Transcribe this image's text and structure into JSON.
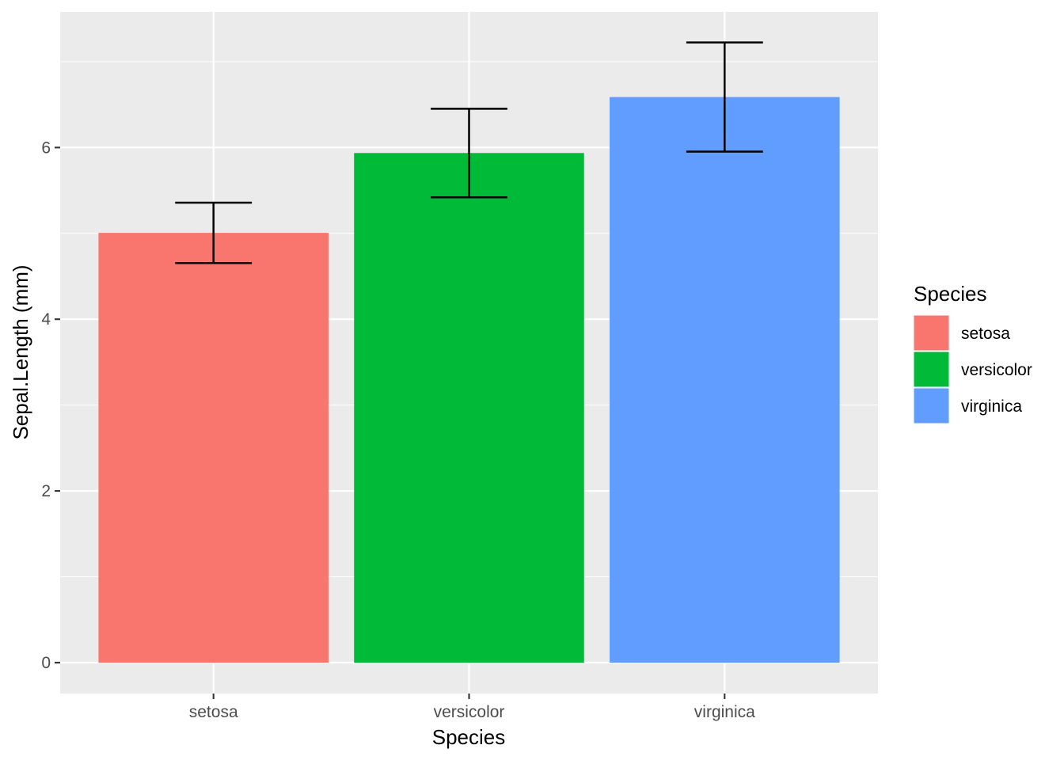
{
  "chart_data": {
    "type": "bar",
    "categories": [
      "setosa",
      "versicolor",
      "virginica"
    ],
    "values": [
      5.006,
      5.936,
      6.588
    ],
    "error_bars": {
      "lower": [
        4.654,
        5.42,
        5.952
      ],
      "upper": [
        5.358,
        6.452,
        7.224
      ]
    },
    "colors": [
      "#F8766D",
      "#00BA38",
      "#619CFF"
    ],
    "xlabel": "Species",
    "ylabel": "Sepal.Length (mm)",
    "yticks": [
      0,
      2,
      4,
      6
    ],
    "ytick_labels": [
      "0",
      "2",
      "4",
      "6"
    ],
    "ylim": [
      -0.36,
      7.58
    ],
    "grid": true,
    "panel_background": "#EBEBEB",
    "legend": {
      "title": "Species",
      "position": "right",
      "entries": [
        "setosa",
        "versicolor",
        "virginica"
      ]
    }
  }
}
